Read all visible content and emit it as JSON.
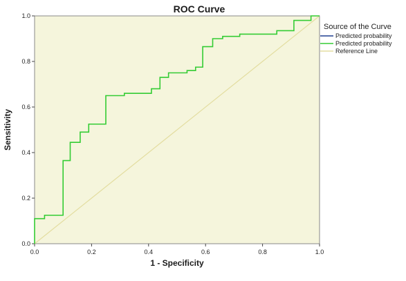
{
  "chart_data": {
    "type": "line",
    "title": "ROC Curve",
    "xlabel": "1 - Specificity",
    "ylabel": "Sensitivity",
    "xlim": [
      0,
      1
    ],
    "ylim": [
      0,
      1
    ],
    "x_ticks": [
      "0.0",
      "0.2",
      "0.4",
      "0.6",
      "0.8",
      "1.0"
    ],
    "y_ticks": [
      "0.0",
      "0.2",
      "0.4",
      "0.6",
      "0.8",
      "1.0"
    ],
    "grid": false,
    "legend_position": "right",
    "legend_title": "Source of the Curve",
    "background_color": "#f5f5dc",
    "series": [
      {
        "name": "Predicted probability",
        "color": "#1f3f8f",
        "points": [
          [
            0,
            0
          ],
          [
            0,
            0
          ]
        ]
      },
      {
        "name": "Predicted probability",
        "color": "#33cc33",
        "points": [
          [
            0.0,
            0.0
          ],
          [
            0.0,
            0.11
          ],
          [
            0.035,
            0.11
          ],
          [
            0.035,
            0.125
          ],
          [
            0.1,
            0.125
          ],
          [
            0.1,
            0.365
          ],
          [
            0.125,
            0.365
          ],
          [
            0.125,
            0.445
          ],
          [
            0.16,
            0.445
          ],
          [
            0.16,
            0.49
          ],
          [
            0.19,
            0.49
          ],
          [
            0.19,
            0.525
          ],
          [
            0.25,
            0.525
          ],
          [
            0.25,
            0.65
          ],
          [
            0.315,
            0.65
          ],
          [
            0.315,
            0.66
          ],
          [
            0.41,
            0.66
          ],
          [
            0.41,
            0.68
          ],
          [
            0.44,
            0.68
          ],
          [
            0.44,
            0.73
          ],
          [
            0.47,
            0.73
          ],
          [
            0.47,
            0.75
          ],
          [
            0.535,
            0.75
          ],
          [
            0.535,
            0.76
          ],
          [
            0.565,
            0.76
          ],
          [
            0.565,
            0.775
          ],
          [
            0.59,
            0.775
          ],
          [
            0.59,
            0.865
          ],
          [
            0.625,
            0.865
          ],
          [
            0.625,
            0.9
          ],
          [
            0.66,
            0.9
          ],
          [
            0.66,
            0.91
          ],
          [
            0.72,
            0.91
          ],
          [
            0.72,
            0.92
          ],
          [
            0.85,
            0.92
          ],
          [
            0.85,
            0.935
          ],
          [
            0.91,
            0.935
          ],
          [
            0.91,
            0.98
          ],
          [
            0.97,
            0.98
          ],
          [
            0.97,
            1.0
          ],
          [
            1.0,
            1.0
          ]
        ]
      },
      {
        "name": "Reference Line",
        "color": "#e3dda0",
        "points": [
          [
            0,
            0
          ],
          [
            1,
            1
          ]
        ]
      }
    ]
  }
}
